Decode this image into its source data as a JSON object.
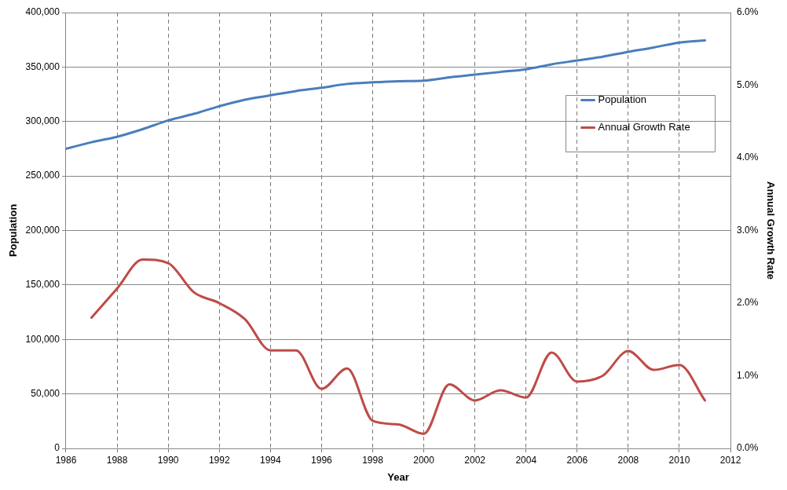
{
  "chart_data": {
    "type": "line",
    "xlabel": "Year",
    "ylabel": "Population",
    "y2label": "Annual Growth Rate",
    "xlim": [
      1986,
      2012
    ],
    "xticks": [
      1986,
      1988,
      1990,
      1992,
      1994,
      1996,
      1998,
      2000,
      2002,
      2004,
      2006,
      2008,
      2010,
      2012
    ],
    "ylim": [
      0,
      400000
    ],
    "yticks": [
      {
        "value": 0,
        "label": "0"
      },
      {
        "value": 50000,
        "label": "50,000"
      },
      {
        "value": 100000,
        "label": "100,000"
      },
      {
        "value": 150000,
        "label": "150,000"
      },
      {
        "value": 200000,
        "label": "200,000"
      },
      {
        "value": 250000,
        "label": "250,000"
      },
      {
        "value": 300000,
        "label": "300,000"
      },
      {
        "value": 350000,
        "label": "350,000"
      },
      {
        "value": 400000,
        "label": "400,000"
      }
    ],
    "y2lim": [
      0,
      6
    ],
    "y2ticks": [
      {
        "value": 0,
        "label": "0.0%"
      },
      {
        "value": 1,
        "label": "1.0%"
      },
      {
        "value": 2,
        "label": "2.0%"
      },
      {
        "value": 3,
        "label": "3.0%"
      },
      {
        "value": 4,
        "label": "4.0%"
      },
      {
        "value": 5,
        "label": "5.0%"
      },
      {
        "value": 6,
        "label": "6.0%"
      }
    ],
    "grid": true,
    "legend": "top right",
    "marker": "none",
    "line_style": "solid",
    "series": [
      {
        "name": "Population",
        "color": "#4a7ebb",
        "x": [
          1986,
          1987,
          1988,
          1989,
          1990,
          1991,
          1992,
          1993,
          1994,
          1995,
          1996,
          1997,
          1998,
          1999,
          2000,
          2001,
          2002,
          2003,
          2004,
          2005,
          2006,
          2007,
          2008,
          2009,
          2010,
          2011
        ],
        "values": [
          275000,
          281000,
          286000,
          293000,
          301000,
          307000,
          314000,
          320000,
          324000,
          328000,
          331000,
          334500,
          336000,
          337000,
          337500,
          340500,
          343000,
          345500,
          348000,
          352500,
          356000,
          359500,
          364000,
          368000,
          372500,
          374500
        ]
      },
      {
        "name": "Annual Growth Rate",
        "color": "#be4b48",
        "axis": "y2",
        "x": [
          1987,
          1988,
          1989,
          1990,
          1991,
          1992,
          1993,
          1994,
          1995,
          1996,
          1997,
          1998,
          1999,
          2000,
          2001,
          2002,
          2003,
          2004,
          2005,
          2006,
          2007,
          2008,
          2009,
          2010,
          2011
        ],
        "values": [
          1.8,
          2.2,
          2.6,
          2.55,
          2.15,
          2.0,
          1.78,
          1.35,
          1.35,
          0.82,
          1.1,
          0.38,
          0.33,
          0.2,
          0.88,
          0.66,
          0.8,
          0.7,
          1.32,
          0.92,
          1.0,
          1.34,
          1.08,
          1.15,
          0.66
        ]
      }
    ]
  }
}
